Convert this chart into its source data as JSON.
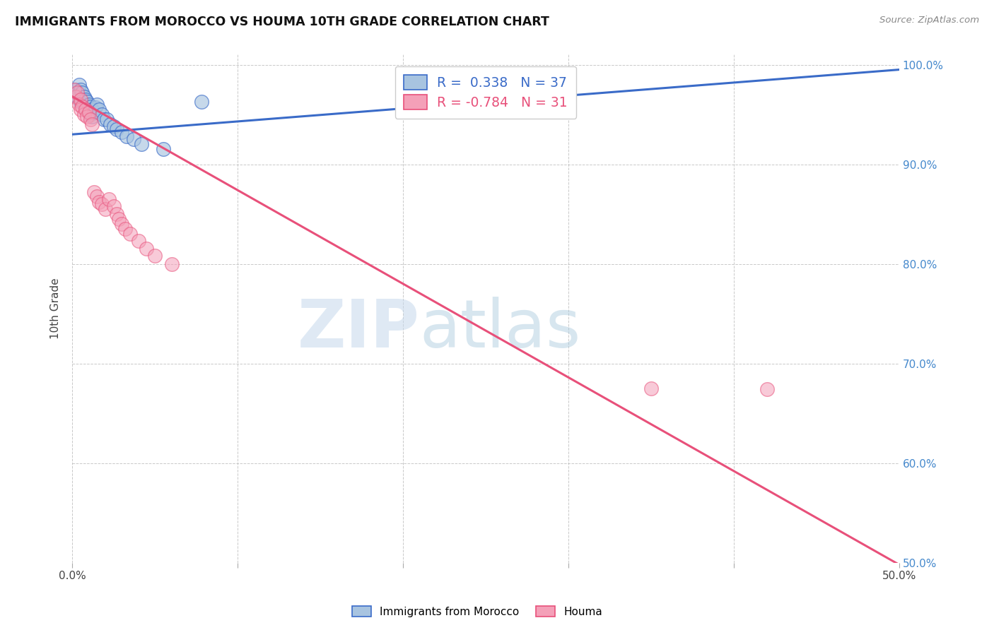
{
  "title": "IMMIGRANTS FROM MOROCCO VS HOUMA 10TH GRADE CORRELATION CHART",
  "source": "Source: ZipAtlas.com",
  "ylabel_label": "10th Grade",
  "xlim": [
    0.0,
    0.5
  ],
  "ylim": [
    0.5,
    1.01
  ],
  "xticks": [
    0.0,
    0.1,
    0.2,
    0.3,
    0.4,
    0.5
  ],
  "xtick_labels": [
    "0.0%",
    "",
    "",
    "",
    "",
    "50.0%"
  ],
  "ytick_labels_right": [
    "50.0%",
    "60.0%",
    "70.0%",
    "80.0%",
    "90.0%",
    "100.0%"
  ],
  "yticks": [
    0.5,
    0.6,
    0.7,
    0.8,
    0.9,
    1.0
  ],
  "blue_R": 0.338,
  "blue_N": 37,
  "pink_R": -0.784,
  "pink_N": 31,
  "blue_color": "#A8C4E0",
  "pink_color": "#F4A0B8",
  "blue_line_color": "#3A6BC8",
  "pink_line_color": "#E8507A",
  "watermark_zip": "ZIP",
  "watermark_atlas": "atlas",
  "blue_scatter_x": [
    0.001,
    0.002,
    0.003,
    0.004,
    0.004,
    0.005,
    0.005,
    0.006,
    0.006,
    0.007,
    0.007,
    0.008,
    0.008,
    0.009,
    0.009,
    0.01,
    0.01,
    0.011,
    0.011,
    0.012,
    0.012,
    0.013,
    0.014,
    0.015,
    0.016,
    0.018,
    0.019,
    0.021,
    0.023,
    0.025,
    0.027,
    0.03,
    0.033,
    0.037,
    0.042,
    0.055,
    0.078
  ],
  "blue_scatter_y": [
    0.97,
    0.975,
    0.968,
    0.972,
    0.98,
    0.975,
    0.963,
    0.972,
    0.965,
    0.968,
    0.96,
    0.965,
    0.958,
    0.963,
    0.955,
    0.96,
    0.952,
    0.958,
    0.95,
    0.955,
    0.948,
    0.952,
    0.957,
    0.96,
    0.955,
    0.95,
    0.945,
    0.945,
    0.94,
    0.938,
    0.935,
    0.932,
    0.928,
    0.925,
    0.92,
    0.915,
    0.963
  ],
  "pink_scatter_x": [
    0.001,
    0.002,
    0.003,
    0.004,
    0.005,
    0.005,
    0.006,
    0.007,
    0.008,
    0.009,
    0.01,
    0.011,
    0.012,
    0.013,
    0.015,
    0.016,
    0.018,
    0.02,
    0.022,
    0.025,
    0.027,
    0.028,
    0.03,
    0.032,
    0.035,
    0.04,
    0.045,
    0.05,
    0.06,
    0.35,
    0.42
  ],
  "pink_scatter_y": [
    0.975,
    0.968,
    0.972,
    0.96,
    0.965,
    0.955,
    0.958,
    0.95,
    0.955,
    0.948,
    0.952,
    0.945,
    0.94,
    0.872,
    0.868,
    0.862,
    0.86,
    0.855,
    0.865,
    0.858,
    0.85,
    0.845,
    0.84,
    0.835,
    0.83,
    0.823,
    0.815,
    0.808,
    0.8,
    0.675,
    0.674
  ],
  "blue_line_x": [
    0.0,
    0.5
  ],
  "blue_line_y": [
    0.93,
    0.995
  ],
  "pink_line_x": [
    0.0,
    0.5
  ],
  "pink_line_y": [
    0.968,
    0.498
  ]
}
